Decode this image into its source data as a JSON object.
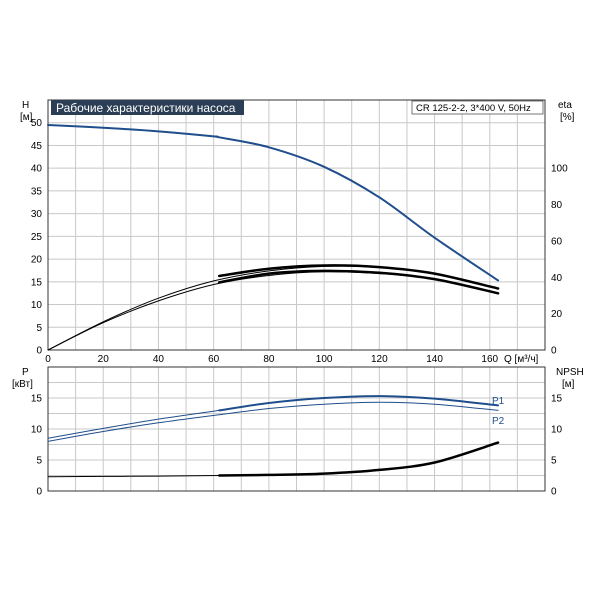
{
  "colors": {
    "blue": "#1f4e8c",
    "black": "#000000",
    "grid": "#c8c8c8",
    "title_bg": "#2b3e55"
  },
  "chart_data": [
    {
      "type": "line",
      "title": "Рабочие характеристики насоса",
      "model_label": "CR 125-2-2, 3*400 V, 50Hz",
      "ylabel_left": "H",
      "yunit_left": "[м]",
      "ylabel_right": "eta",
      "yunit_right": "[%]",
      "xlabel": "Q [м³/ч]",
      "xlim": [
        0,
        180
      ],
      "xticks": [
        "0",
        "20",
        "40",
        "60",
        "80",
        "100",
        "120",
        "140",
        "160"
      ],
      "ylim_left": [
        0,
        55
      ],
      "yticks_left": [
        "0",
        "5",
        "10",
        "15",
        "20",
        "25",
        "30",
        "35",
        "40",
        "45",
        "50"
      ],
      "ylim_right": [
        0,
        137.5
      ],
      "yticks_right": [
        "0",
        "20",
        "40",
        "60",
        "80",
        "100"
      ],
      "series": [
        {
          "axis": "left",
          "color": "#1f4e8c",
          "width": 2,
          "x": [
            0,
            20,
            40,
            60,
            62,
            80,
            100,
            120,
            140,
            163
          ],
          "y": [
            49.5,
            48.9,
            48.1,
            47.0,
            46.8,
            44.6,
            40.3,
            33.6,
            24.7,
            15.3
          ]
        },
        {
          "axis": "right",
          "color": "#000000",
          "width": 1,
          "x": [
            0,
            20,
            40,
            60,
            80,
            100,
            120,
            140,
            163
          ],
          "y": [
            0,
            15,
            27,
            36,
            41,
            43,
            42,
            39,
            31
          ]
        },
        {
          "axis": "right",
          "color": "#000000",
          "width": 2.5,
          "x": [
            62,
            80,
            100,
            120,
            140,
            163
          ],
          "y": [
            40.7,
            44.7,
            46.5,
            45.6,
            42.0,
            33.8
          ]
        },
        {
          "axis": "right",
          "color": "#000000",
          "width": 1,
          "x": [
            0,
            20,
            40,
            60,
            80,
            100,
            120,
            140,
            163
          ],
          "y": [
            0,
            15.5,
            28.5,
            38,
            43.5,
            46,
            45.5,
            42,
            34
          ]
        },
        {
          "axis": "right",
          "color": "#000000",
          "width": 2.5,
          "x": [
            62,
            80,
            100,
            120,
            140,
            163
          ],
          "y": [
            37.2,
            42.0,
            43.5,
            42.5,
            39.0,
            31.2
          ]
        }
      ]
    },
    {
      "type": "line",
      "ylabel_left": "P",
      "yunit_left": "[кВт]",
      "ylabel_right": "NPSH",
      "yunit_right": "[м]",
      "xlim": [
        0,
        180
      ],
      "ylim_left": [
        0,
        20
      ],
      "yticks_left": [
        "0",
        "5",
        "10",
        "15"
      ],
      "ylim_right": [
        0,
        20
      ],
      "yticks_right": [
        "0",
        "5",
        "10",
        "15"
      ],
      "series": [
        {
          "name": "P1",
          "axis": "left",
          "color": "#1f4e8c",
          "width": 1,
          "x": [
            0,
            20,
            40,
            62
          ],
          "y": [
            8.5,
            10.1,
            11.6,
            13.0
          ]
        },
        {
          "name": "P1",
          "axis": "left",
          "color": "#1f4e8c",
          "width": 2,
          "x": [
            62,
            80,
            100,
            120,
            140,
            163
          ],
          "y": [
            13.0,
            14.2,
            15.0,
            15.3,
            14.9,
            13.8
          ]
        },
        {
          "name": "P2",
          "axis": "left",
          "color": "#1f4e8c",
          "width": 1,
          "x": [
            0,
            20,
            40,
            62,
            80,
            100,
            120,
            140,
            163
          ],
          "y": [
            8.0,
            9.6,
            11.0,
            12.3,
            13.3,
            14.0,
            14.3,
            14.0,
            13.0
          ]
        },
        {
          "name": "NPSH",
          "axis": "right",
          "color": "#000000",
          "width": 1,
          "x": [
            0,
            20,
            40,
            62
          ],
          "y": [
            2.3,
            2.35,
            2.4,
            2.5
          ]
        },
        {
          "name": "NPSH",
          "axis": "right",
          "color": "#000000",
          "width": 2.5,
          "x": [
            62,
            80,
            100,
            120,
            140,
            163
          ],
          "y": [
            2.5,
            2.6,
            2.8,
            3.4,
            4.6,
            7.8
          ]
        }
      ],
      "series_labels": [
        "P1",
        "P2"
      ]
    }
  ]
}
